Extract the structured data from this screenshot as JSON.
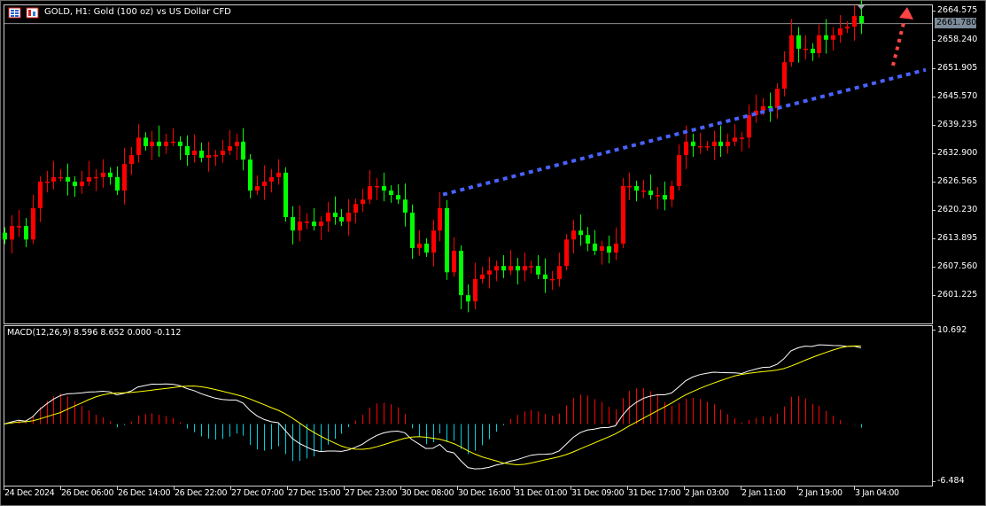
{
  "window": {
    "title": "GOLD, H1:  Gold (100 oz) vs US Dollar CFD",
    "icons": [
      "chart-window-icon",
      "chart-type-icon"
    ]
  },
  "colors": {
    "background": "#000000",
    "bull_candle": "#ff0000",
    "bear_candle": "#00ff00",
    "bid_line": "#8c8c8c",
    "trendline": "#4a62ff",
    "forecast_arrow": "#ff4444",
    "macd_main": "#ffffff",
    "macd_signal": "#ffff00",
    "hist_positive": "#ff0000",
    "hist_negative": "#00d0e0"
  },
  "price_axis": {
    "labels": [
      "2664.575",
      "2658.240",
      "2651.905",
      "2645.570",
      "2639.235",
      "2632.900",
      "2626.565",
      "2620.230",
      "2613.895",
      "2607.560",
      "2601.225"
    ],
    "bid_label": "2661.780"
  },
  "macd": {
    "label": "MACD(12,26,9) 8.596 8.652 0.000 -0.112",
    "axis_labels": [
      "10.692",
      "-6.484"
    ]
  },
  "time_axis": {
    "labels": [
      "24 Dec 2024",
      "26 Dec 06:00",
      "26 Dec 14:00",
      "26 Dec 22:00",
      "27 Dec 07:00",
      "27 Dec 15:00",
      "27 Dec 23:00",
      "30 Dec 08:00",
      "30 Dec 16:00",
      "31 Dec 01:00",
      "31 Dec 09:00",
      "31 Dec 17:00",
      "2 Jan 03:00",
      "2 Jan 11:00",
      "2 Jan 19:00",
      "3 Jan 04:00"
    ]
  },
  "chart_data": {
    "type": "candlestick",
    "symbol": "GOLD",
    "timeframe": "H1",
    "ylim": [
      2598.5,
      2666.0
    ],
    "bid": 2661.78,
    "closes": [
      2613.6,
      2616.6,
      2616.6,
      2613.6,
      2620.6,
      2626.5,
      2626.5,
      2627.5,
      2627.5,
      2626.5,
      2625.5,
      2626.5,
      2627.5,
      2627.5,
      2628.5,
      2627.5,
      2624.5,
      2630.4,
      2632.4,
      2636.3,
      2634.4,
      2635.4,
      2634.4,
      2635.4,
      2635.4,
      2634.4,
      2632.4,
      2633.4,
      2631.8,
      2632.4,
      2632.4,
      2633.4,
      2634.4,
      2635.4,
      2631.4,
      2624.5,
      2625.5,
      2626.5,
      2627.5,
      2628.5,
      2618.6,
      2615.6,
      2617.6,
      2617.6,
      2616.6,
      2617.6,
      2619.6,
      2618.6,
      2617.6,
      2619.6,
      2621.5,
      2622.5,
      2625.5,
      2625.5,
      2624.5,
      2623.5,
      2622.5,
      2619.6,
      2611.7,
      2612.7,
      2610.7,
      2615.6,
      2620.6,
      2606.3,
      2611.1,
      2601.2,
      2599.8,
      2604.8,
      2605.8,
      2606.7,
      2607.7,
      2606.7,
      2607.7,
      2606.7,
      2607.7,
      2607.7,
      2605.8,
      2604.8,
      2604.8,
      2607.7,
      2613.6,
      2615.6,
      2614.6,
      2612.7,
      2611.1,
      2612.1,
      2610.7,
      2612.7,
      2625.5,
      2625.5,
      2624.5,
      2624.5,
      2623.5,
      2623.5,
      2622.5,
      2625.5,
      2632.4,
      2635.4,
      2634.4,
      2634.4,
      2634.4,
      2635.4,
      2634.4,
      2635.4,
      2636.3,
      2636.3,
      2641.3,
      2642.3,
      2643.3,
      2642.9,
      2647.2,
      2653.1,
      2659.1,
      2656.1,
      2656.1,
      2655.1,
      2659.1,
      2658.1,
      2659.1,
      2660.6,
      2661.0,
      2663.4,
      2661.78
    ],
    "macd_params": [
      12,
      26,
      9
    ],
    "macd_ylim": [
      -6.484,
      10.692
    ],
    "trendline": {
      "from_price": 2623.6,
      "to_price": 2651.4
    },
    "forecast_arrow": {
      "direction": "up"
    }
  }
}
